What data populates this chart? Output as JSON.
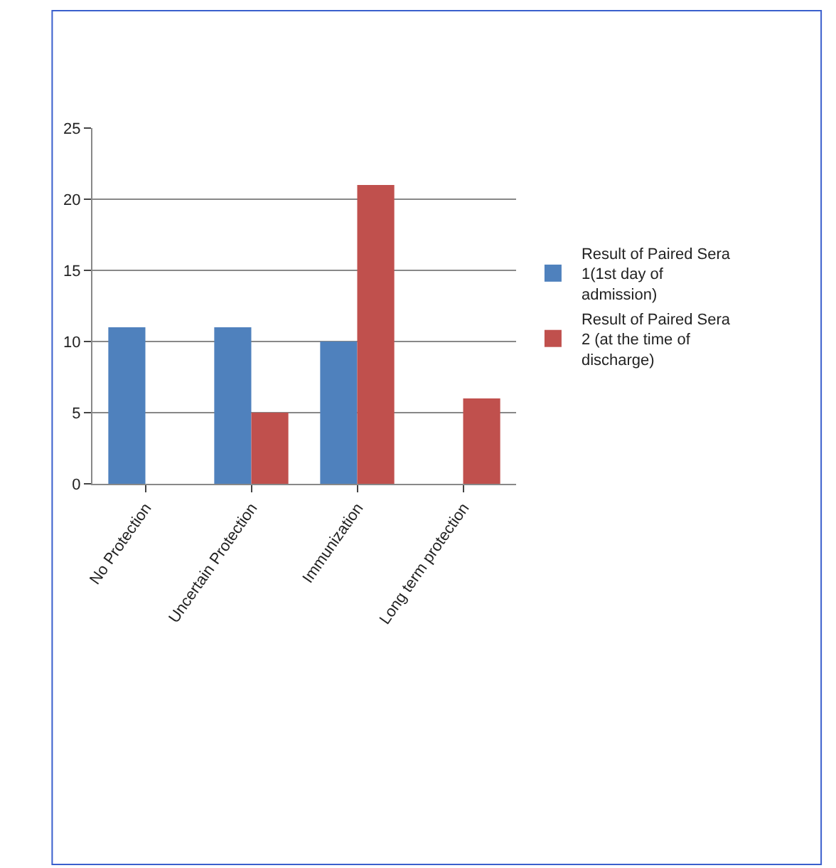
{
  "chart_data": {
    "type": "bar",
    "categories": [
      "No Protection",
      "Uncertain Protection",
      "Immunization",
      "Long term protection"
    ],
    "series": [
      {
        "name": "Result of Paired Sera 1(1st day of admission)",
        "color": "#4f81bd",
        "values": [
          11,
          11,
          10,
          null
        ]
      },
      {
        "name": "Result of Paired Sera 2 (at the time of discharge)",
        "color": "#c0504d",
        "values": [
          null,
          5,
          21,
          6
        ]
      }
    ],
    "ylim": [
      0,
      25
    ],
    "yticks": [
      0,
      5,
      10,
      15,
      20,
      25
    ],
    "grid": "y",
    "legend": "right"
  }
}
